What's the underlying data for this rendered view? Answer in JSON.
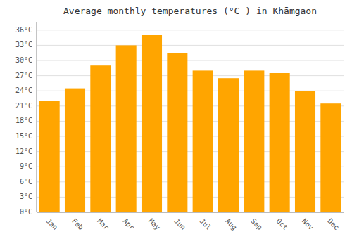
{
  "chart_data": {
    "type": "bar",
    "title": "Average monthly temperatures (°C ) in Khāmgaon",
    "categories": [
      "Jan",
      "Feb",
      "Mar",
      "Apr",
      "May",
      "Jun",
      "Jul",
      "Aug",
      "Sep",
      "Oct",
      "Nov",
      "Dec"
    ],
    "values": [
      22,
      24.5,
      29,
      33,
      35,
      31.5,
      28,
      26.5,
      28,
      27.5,
      24,
      21.5
    ],
    "color": "#FFA500",
    "ylim": [
      0,
      37.5
    ],
    "yticks": [
      {
        "value": 0,
        "label": "0°C"
      },
      {
        "value": 3,
        "label": "3°C"
      },
      {
        "value": 6,
        "label": "6°C"
      },
      {
        "value": 9,
        "label": "9°C"
      },
      {
        "value": 12,
        "label": "12°C"
      },
      {
        "value": 15,
        "label": "15°C"
      },
      {
        "value": 18,
        "label": "18°C"
      },
      {
        "value": 21,
        "label": "21°C"
      },
      {
        "value": 24,
        "label": "24°C"
      },
      {
        "value": 27,
        "label": "27°C"
      },
      {
        "value": 30,
        "label": "30°C"
      },
      {
        "value": 33,
        "label": "33°C"
      },
      {
        "value": 36,
        "label": "36°C"
      }
    ],
    "grid": true
  }
}
